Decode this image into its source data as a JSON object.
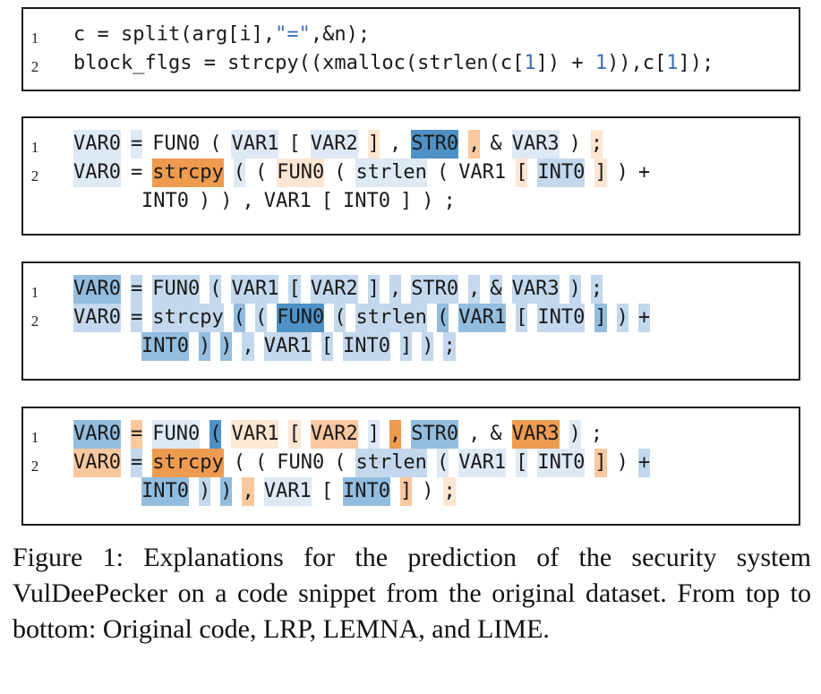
{
  "colors": {
    "weak_blue": "#dde9f5",
    "light_blue": "#c3d8ec",
    "mid_blue": "#93bddf",
    "strong_blue": "#4e91c6",
    "pale_orange": "#fde6d2",
    "light_orange": "#f9c89f",
    "strong_orange": "#ee9b4f",
    "literal_blue": "#3c6fb6"
  },
  "original": {
    "line_numbers": [
      "1",
      "2"
    ],
    "lines": [
      [
        {
          "t": "c = split(arg[i],"
        },
        {
          "t": "\"=\"",
          "lit": true
        },
        {
          "t": ",&n);"
        }
      ],
      [
        {
          "t": "block_flgs = strcpy((xmalloc(strlen(c["
        },
        {
          "t": "1",
          "lit": true
        },
        {
          "t": "]) + "
        },
        {
          "t": "1",
          "lit": true
        },
        {
          "t": ")),c["
        },
        {
          "t": "1",
          "lit": true
        },
        {
          "t": "]);"
        }
      ]
    ]
  },
  "panels": [
    {
      "name": "LRP",
      "line_numbers": [
        "1",
        "2"
      ],
      "lines": [
        [
          [
            "VAR0",
            "weak_blue"
          ],
          [
            "=",
            "weak_blue"
          ],
          [
            "FUN0",
            ""
          ],
          [
            "(",
            ""
          ],
          [
            "VAR1",
            "weak_blue"
          ],
          [
            "[",
            ""
          ],
          [
            "VAR2",
            "weak_blue"
          ],
          [
            "]",
            "pale_orange"
          ],
          [
            ",",
            ""
          ],
          [
            "STR0",
            "strong_blue"
          ],
          [
            ",",
            "light_orange"
          ],
          [
            "&",
            ""
          ],
          [
            "VAR3",
            "weak_blue"
          ],
          [
            ")",
            ""
          ],
          [
            ";",
            "pale_orange"
          ]
        ],
        [
          [
            "VAR0",
            "weak_blue"
          ],
          [
            "=",
            ""
          ],
          [
            "strcpy",
            "strong_orange"
          ],
          [
            "(",
            "weak_blue"
          ],
          [
            "(",
            ""
          ],
          [
            "FUN0",
            "pale_orange"
          ],
          [
            "(",
            ""
          ],
          [
            "strlen",
            "weak_blue"
          ],
          [
            "(",
            ""
          ],
          [
            "VAR1",
            ""
          ],
          [
            "[",
            "pale_orange"
          ],
          [
            "INT0",
            "light_blue"
          ],
          [
            "]",
            "pale_orange"
          ],
          [
            ")",
            ""
          ],
          [
            "+",
            ""
          ]
        ],
        [
          [
            "INT0",
            ""
          ],
          [
            ")",
            ""
          ],
          [
            ")",
            ""
          ],
          [
            ",",
            ""
          ],
          [
            "VAR1",
            ""
          ],
          [
            "[",
            ""
          ],
          [
            "INT0",
            ""
          ],
          [
            "]",
            ""
          ],
          [
            ")",
            ""
          ],
          [
            ";",
            ""
          ]
        ]
      ]
    },
    {
      "name": "LEMNA",
      "line_numbers": [
        "1",
        "2"
      ],
      "lines": [
        [
          [
            "VAR0",
            "mid_blue"
          ],
          [
            "=",
            "light_blue"
          ],
          [
            "FUN0",
            "light_blue"
          ],
          [
            "(",
            "light_blue"
          ],
          [
            "VAR1",
            "light_blue"
          ],
          [
            "[",
            "light_blue"
          ],
          [
            "VAR2",
            "light_blue"
          ],
          [
            "]",
            "light_blue"
          ],
          [
            ",",
            "light_blue"
          ],
          [
            "STR0",
            "light_blue"
          ],
          [
            ",",
            "light_blue"
          ],
          [
            "&",
            "light_blue"
          ],
          [
            "VAR3",
            "light_blue"
          ],
          [
            ")",
            "light_blue"
          ],
          [
            ";",
            "light_blue"
          ]
        ],
        [
          [
            "VAR0",
            "light_blue"
          ],
          [
            "=",
            "light_blue"
          ],
          [
            "strcpy",
            "light_blue"
          ],
          [
            "(",
            "mid_blue"
          ],
          [
            "(",
            "light_blue"
          ],
          [
            "FUN0",
            "strong_blue"
          ],
          [
            "(",
            "light_blue"
          ],
          [
            "strlen",
            "light_blue"
          ],
          [
            "(",
            "mid_blue"
          ],
          [
            "VAR1",
            "mid_blue"
          ],
          [
            "[",
            "light_blue"
          ],
          [
            "INT0",
            "light_blue"
          ],
          [
            "]",
            "mid_blue"
          ],
          [
            ")",
            "light_blue"
          ],
          [
            "+",
            "light_blue"
          ]
        ],
        [
          [
            "INT0",
            "mid_blue"
          ],
          [
            ")",
            "mid_blue"
          ],
          [
            ")",
            "mid_blue"
          ],
          [
            ",",
            "light_blue"
          ],
          [
            "VAR1",
            "light_blue"
          ],
          [
            "[",
            "light_blue"
          ],
          [
            "INT0",
            "light_blue"
          ],
          [
            "]",
            "light_blue"
          ],
          [
            ")",
            "light_blue"
          ],
          [
            ";",
            "light_blue"
          ]
        ]
      ]
    },
    {
      "name": "LIME",
      "line_numbers": [
        "1",
        "2"
      ],
      "lines": [
        [
          [
            "VAR0",
            "mid_blue"
          ],
          [
            "=",
            "light_orange"
          ],
          [
            "FUN0",
            "weak_blue"
          ],
          [
            "(",
            "strong_blue"
          ],
          [
            "VAR1",
            "pale_orange"
          ],
          [
            "[",
            "pale_orange"
          ],
          [
            "VAR2",
            "light_orange"
          ],
          [
            "]",
            "weak_blue"
          ],
          [
            ",",
            "strong_orange"
          ],
          [
            "STR0",
            "mid_blue"
          ],
          [
            ",",
            ""
          ],
          [
            "&",
            ""
          ],
          [
            "VAR3",
            "strong_orange"
          ],
          [
            ")",
            "weak_blue"
          ],
          [
            ";",
            ""
          ]
        ],
        [
          [
            "VAR0",
            "light_orange"
          ],
          [
            "=",
            "light_blue"
          ],
          [
            "strcpy",
            "strong_orange"
          ],
          [
            "(",
            ""
          ],
          [
            "(",
            ""
          ],
          [
            "FUN0",
            ""
          ],
          [
            "(",
            ""
          ],
          [
            "strlen",
            "light_blue"
          ],
          [
            "(",
            "weak_blue"
          ],
          [
            "VAR1",
            "weak_blue"
          ],
          [
            "[",
            "weak_blue"
          ],
          [
            "INT0",
            "weak_blue"
          ],
          [
            "]",
            "light_orange"
          ],
          [
            ")",
            ""
          ],
          [
            "+",
            "light_blue"
          ]
        ],
        [
          [
            "INT0",
            "mid_blue"
          ],
          [
            ")",
            "light_blue"
          ],
          [
            ")",
            "mid_blue"
          ],
          [
            ",",
            "light_orange"
          ],
          [
            "VAR1",
            "weak_blue"
          ],
          [
            "[",
            ""
          ],
          [
            "INT0",
            "mid_blue"
          ],
          [
            "]",
            "light_orange"
          ],
          [
            ")",
            ""
          ],
          [
            ";",
            "pale_orange"
          ]
        ]
      ]
    }
  ],
  "caption": "Figure 1: Explanations for the prediction of the security system VulDeePecker on a code snippet from the original dataset. From top to bottom: Original code, LRP, LEMNA, and LIME."
}
